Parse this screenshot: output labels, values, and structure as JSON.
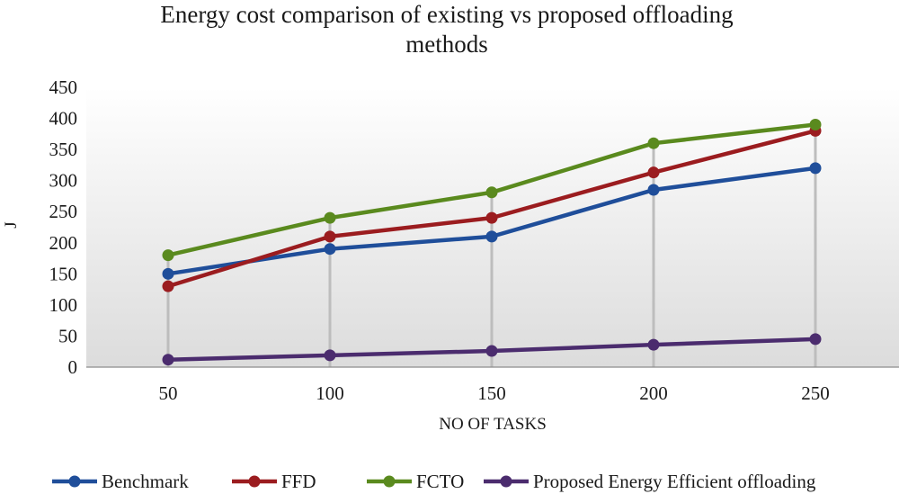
{
  "chart_data": {
    "type": "line",
    "title_lines": [
      "Energy cost comparison of existing vs proposed offloading",
      "methods"
    ],
    "xlabel": "NO OF TASKS",
    "ylabel": "J",
    "categories": [
      "50",
      "100",
      "150",
      "200",
      "250"
    ],
    "ylim": [
      0,
      450
    ],
    "yticks": [
      "0",
      "50",
      "100",
      "150",
      "200",
      "250",
      "300",
      "350",
      "400",
      "450"
    ],
    "series": [
      {
        "name": "Benchmark",
        "color": "#1f4e9a",
        "values": [
          150,
          190,
          210,
          285,
          320
        ]
      },
      {
        "name": "FFD",
        "color": "#9b1c1f",
        "values": [
          130,
          210,
          240,
          313,
          380
        ]
      },
      {
        "name": "FCTO",
        "color": "#5a8a1e",
        "values": [
          180,
          240,
          281,
          360,
          390
        ]
      },
      {
        "name": "Proposed Energy Efficient offloading",
        "color": "#4b2c6e",
        "values": [
          12,
          19,
          26,
          36,
          45
        ]
      }
    ],
    "legend_position": "bottom"
  }
}
